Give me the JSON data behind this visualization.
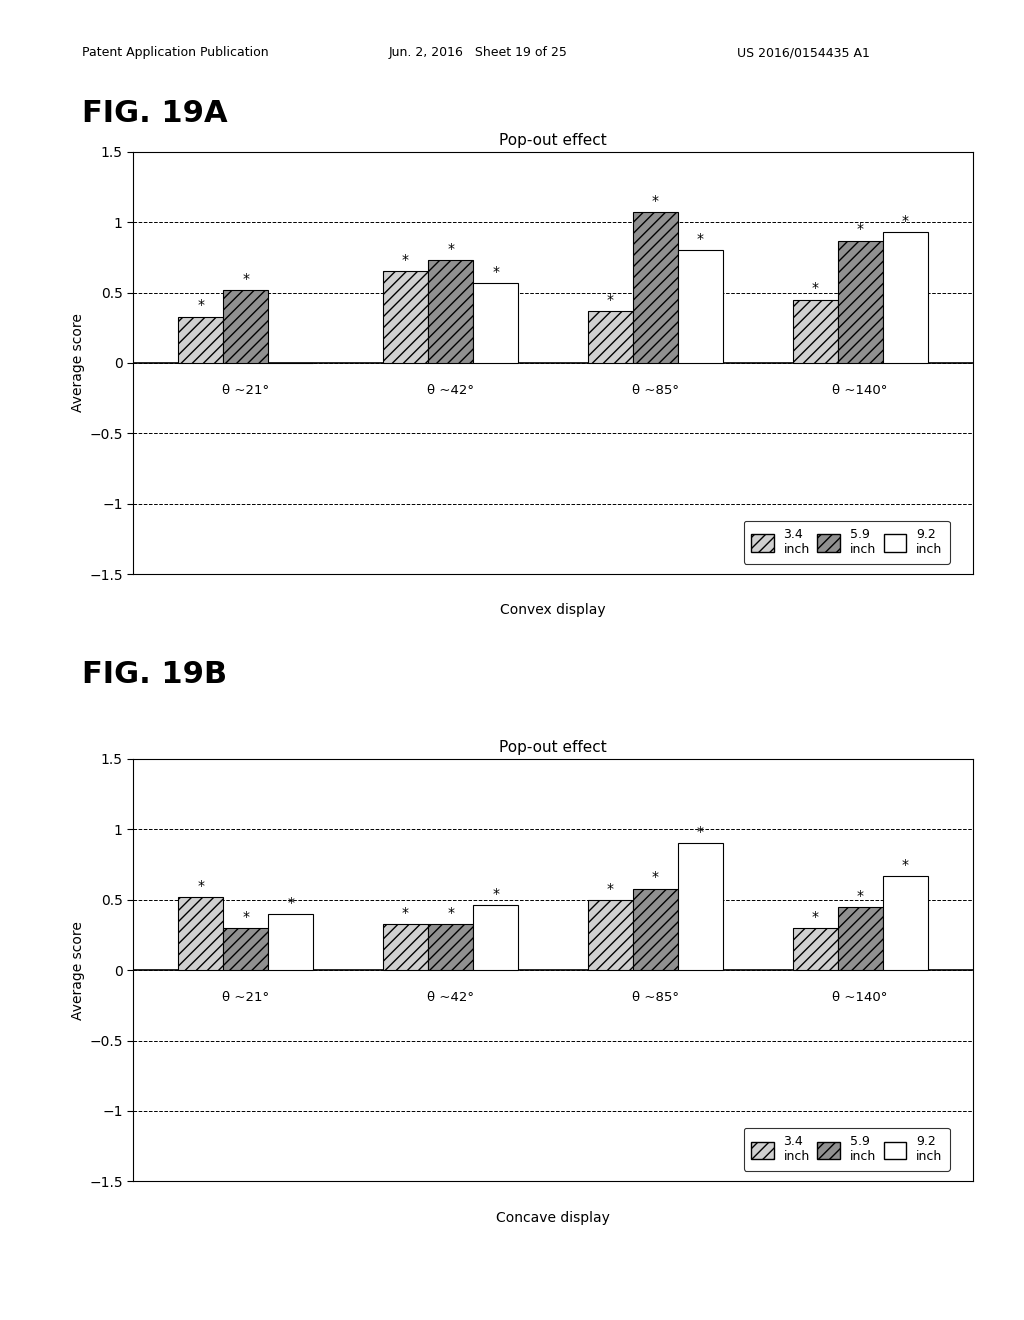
{
  "fig_a_label": "FIG. 19A",
  "fig_b_label": "FIG. 19B",
  "title": "Pop-out effect",
  "ylabel": "Average score",
  "xlabel_a": "Convex display",
  "xlabel_b": "Concave display",
  "categories": [
    "θ ~21°",
    "θ ~42°",
    "θ ~85°",
    "θ ~140°"
  ],
  "legend_labels_line1": [
    "3.4",
    "5.9",
    "9.2"
  ],
  "legend_labels_line2": [
    "inch",
    "inch",
    "inch"
  ],
  "ylim": [
    -1.5,
    1.5
  ],
  "yticks": [
    -1.5,
    -1.0,
    -0.5,
    0.0,
    0.5,
    1.0,
    1.5
  ],
  "ytick_labels": [
    "−1.5",
    "−1",
    "−0.5",
    "0",
    "0.5",
    "1",
    "1.5"
  ],
  "dashed_lines_y": [
    -1.0,
    -0.5,
    0.0,
    0.5,
    1.0
  ],
  "fig_a_data": {
    "bar1": [
      0.33,
      0.65,
      0.37,
      0.45
    ],
    "bar2": [
      0.52,
      0.73,
      1.07,
      0.87
    ],
    "bar3": [
      0.0,
      0.57,
      0.8,
      0.93
    ]
  },
  "fig_b_data": {
    "bar1": [
      0.52,
      0.33,
      0.5,
      0.3
    ],
    "bar2": [
      0.3,
      0.33,
      0.58,
      0.45
    ],
    "bar3": [
      0.4,
      0.46,
      0.9,
      0.67
    ]
  },
  "star_a": {
    "bar1": [
      true,
      true,
      true,
      true
    ],
    "bar2": [
      true,
      true,
      true,
      true
    ],
    "bar3": [
      false,
      true,
      true,
      true
    ]
  },
  "star_b": {
    "bar1": [
      true,
      true,
      true,
      true
    ],
    "bar2": [
      true,
      true,
      true,
      true
    ],
    "bar3": [
      true,
      true,
      true,
      true
    ]
  },
  "bar_width": 0.22,
  "background_color": "#ffffff",
  "header_left": "Patent Application Publication",
  "header_mid": "Jun. 2, 2016   Sheet 19 of 25",
  "header_right": "US 2016/0154435 A1"
}
